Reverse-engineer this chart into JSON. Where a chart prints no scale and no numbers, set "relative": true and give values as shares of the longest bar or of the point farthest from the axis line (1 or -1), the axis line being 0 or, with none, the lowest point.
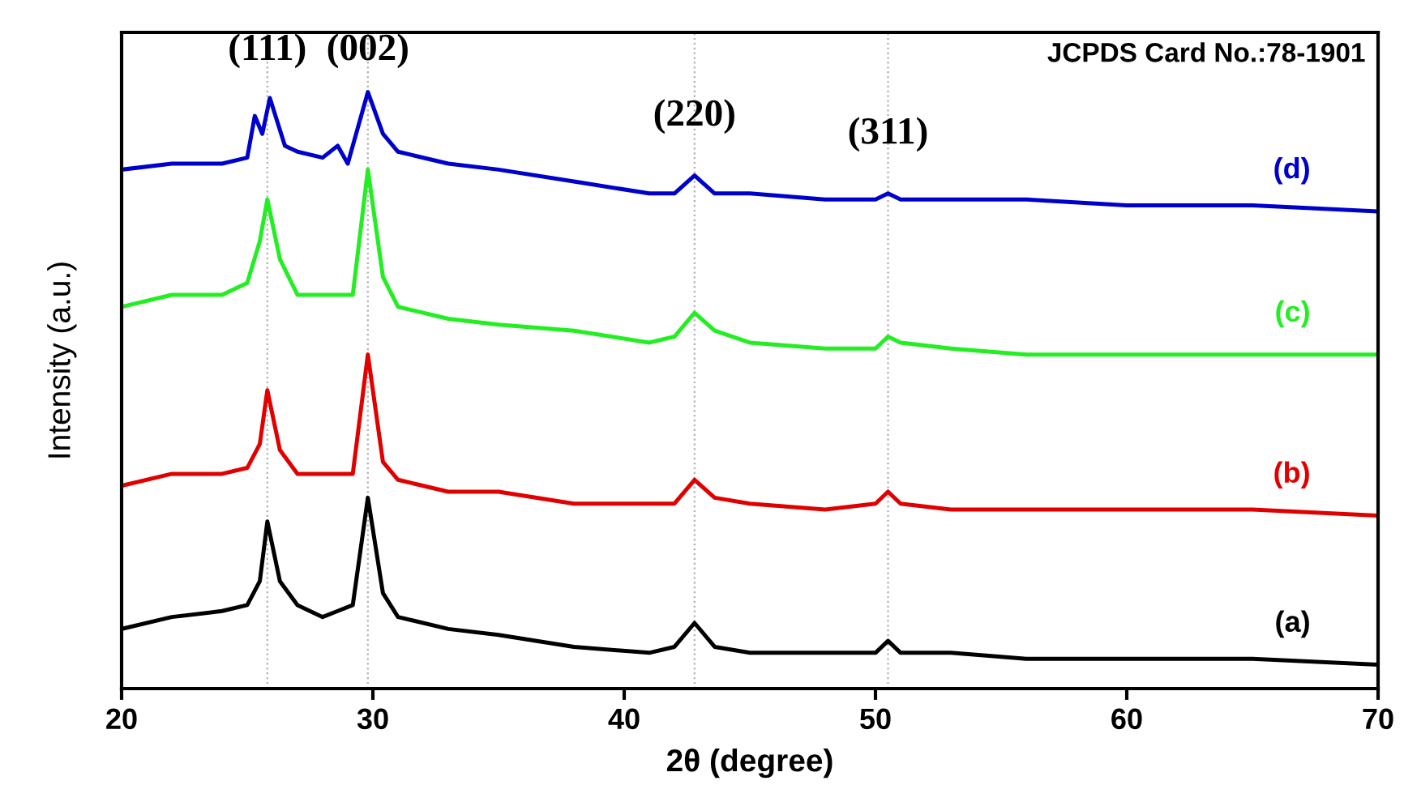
{
  "chart_data": {
    "type": "line",
    "relative": true,
    "xlabel": "2θ (degree)",
    "ylabel": "Intensity (a.u.)",
    "xlim": [
      20,
      70
    ],
    "xticks": [
      20,
      30,
      40,
      50,
      60,
      70
    ],
    "tick_labels": "x",
    "grid": false,
    "legend": false,
    "line_style": "solid",
    "marker": "none",
    "annotations": [
      {
        "text": "(111)",
        "x": 25.8,
        "y": 1.04
      },
      {
        "text": "(002)",
        "x": 29.8,
        "y": 1.04
      },
      {
        "text": "(220)",
        "x": 42.8,
        "y": 0.93
      },
      {
        "text": "(311)",
        "x": 50.5,
        "y": 0.9
      },
      "JCPDS Card No.:78-1901"
    ],
    "ref_lines": [
      {
        "axis": "x",
        "value": 25.8,
        "color": "#b0b0b0",
        "line_style": "dotted"
      },
      {
        "axis": "x",
        "value": 29.8,
        "color": "#b0b0b0",
        "line_style": "dotted"
      },
      {
        "axis": "x",
        "value": 42.8,
        "color": "#b0b0b0",
        "line_style": "dotted"
      },
      {
        "axis": "x",
        "value": 50.5,
        "color": "#b0b0b0",
        "line_style": "dotted"
      }
    ],
    "series": [
      {
        "name": "(a)",
        "color": "#000000",
        "x": [
          20,
          22,
          24,
          25,
          25.5,
          25.8,
          26.3,
          27,
          28,
          28.6,
          29.2,
          29.8,
          30.4,
          31,
          33,
          35,
          38,
          41,
          42,
          42.8,
          43.6,
          45,
          48,
          50,
          50.5,
          51,
          53,
          56,
          60,
          65,
          70
        ],
        "values": [
          0.1,
          0.12,
          0.13,
          0.14,
          0.18,
          0.28,
          0.18,
          0.14,
          0.12,
          0.13,
          0.14,
          0.32,
          0.16,
          0.12,
          0.1,
          0.09,
          0.07,
          0.06,
          0.07,
          0.11,
          0.07,
          0.06,
          0.06,
          0.06,
          0.08,
          0.06,
          0.06,
          0.05,
          0.05,
          0.05,
          0.04
        ]
      },
      {
        "name": "(b)",
        "color": "#e00000",
        "x": [
          20,
          22,
          24,
          25,
          25.5,
          25.8,
          26.3,
          27,
          28,
          29.2,
          29.8,
          30.4,
          31,
          33,
          35,
          38,
          41,
          42,
          42.8,
          43.6,
          45,
          48,
          50,
          50.5,
          51,
          53,
          56,
          60,
          65,
          70
        ],
        "values": [
          0.34,
          0.36,
          0.36,
          0.37,
          0.41,
          0.5,
          0.4,
          0.36,
          0.36,
          0.36,
          0.56,
          0.38,
          0.35,
          0.33,
          0.33,
          0.31,
          0.31,
          0.31,
          0.35,
          0.32,
          0.31,
          0.3,
          0.31,
          0.33,
          0.31,
          0.3,
          0.3,
          0.3,
          0.3,
          0.29
        ]
      },
      {
        "name": "(c)",
        "color": "#22ee22",
        "x": [
          20,
          22,
          24,
          25,
          25.5,
          25.8,
          26.3,
          27,
          28,
          29.2,
          29.8,
          30.4,
          31,
          33,
          35,
          38,
          41,
          42,
          42.8,
          43.6,
          45,
          48,
          50,
          50.5,
          51,
          53,
          56,
          60,
          65,
          70
        ],
        "values": [
          0.64,
          0.66,
          0.66,
          0.68,
          0.75,
          0.82,
          0.72,
          0.66,
          0.66,
          0.66,
          0.87,
          0.69,
          0.64,
          0.62,
          0.61,
          0.6,
          0.58,
          0.59,
          0.63,
          0.6,
          0.58,
          0.57,
          0.57,
          0.59,
          0.58,
          0.57,
          0.56,
          0.56,
          0.56,
          0.56
        ]
      },
      {
        "name": "(d)",
        "color": "#0000cc",
        "x": [
          20,
          22,
          24,
          25,
          25.3,
          25.6,
          25.9,
          26.5,
          27,
          28,
          28.6,
          29,
          29.8,
          30.4,
          31,
          33,
          35,
          38,
          41,
          42,
          42.8,
          43.6,
          45,
          48,
          50,
          50.5,
          51,
          53,
          56,
          60,
          65,
          70
        ],
        "values": [
          0.87,
          0.88,
          0.88,
          0.89,
          0.96,
          0.93,
          0.99,
          0.91,
          0.9,
          0.89,
          0.91,
          0.88,
          1.0,
          0.93,
          0.9,
          0.88,
          0.87,
          0.85,
          0.83,
          0.83,
          0.86,
          0.83,
          0.83,
          0.82,
          0.82,
          0.83,
          0.82,
          0.82,
          0.82,
          0.81,
          0.81,
          0.8
        ]
      }
    ]
  }
}
